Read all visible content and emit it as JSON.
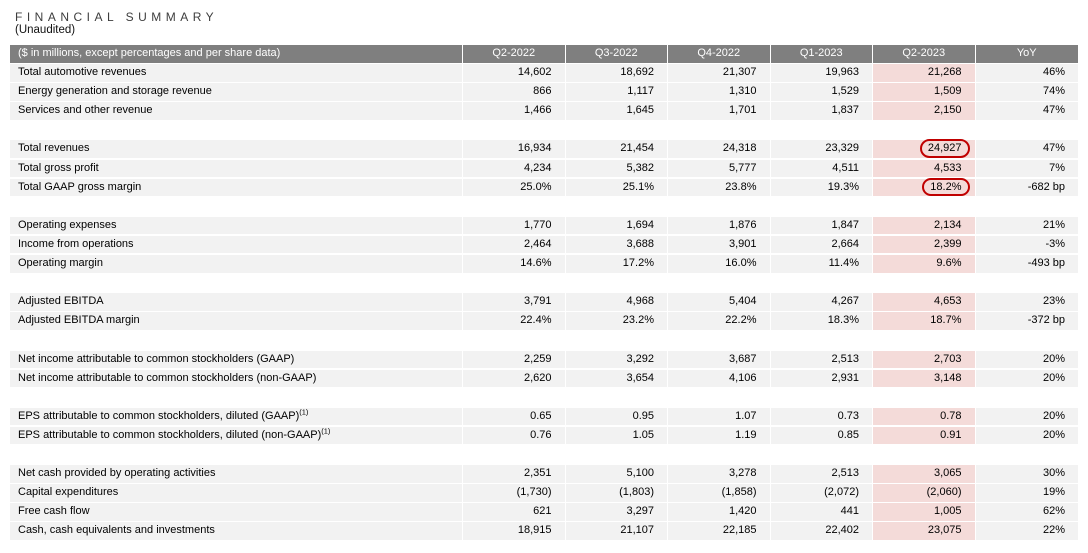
{
  "title": "FINANCIAL SUMMARY",
  "subtitle": "(Unaudited)",
  "colors": {
    "header_bg": "#7f7f7f",
    "header_text": "#ffffff",
    "row_bg": "#f2f2f2",
    "highlight_column_bg": "#f4dbd9",
    "annotation_red": "#c00000"
  },
  "table": {
    "label_header": "($ in millions, except percentages and per share data)",
    "columns": [
      "Q2-2022",
      "Q3-2022",
      "Q4-2022",
      "Q1-2023",
      "Q2-2023",
      "YoY"
    ],
    "highlight_column_index": 4,
    "groups": [
      {
        "rows": [
          {
            "label": "Total automotive revenues",
            "values": [
              "14,602",
              "18,692",
              "21,307",
              "19,963",
              "21,268",
              "46%"
            ]
          },
          {
            "label": "Energy generation and storage revenue",
            "values": [
              "866",
              "1,117",
              "1,310",
              "1,529",
              "1,509",
              "74%"
            ]
          },
          {
            "label": "Services and other revenue",
            "values": [
              "1,466",
              "1,645",
              "1,701",
              "1,837",
              "2,150",
              "47%"
            ]
          }
        ]
      },
      {
        "rows": [
          {
            "label": "Total revenues",
            "values": [
              "16,934",
              "21,454",
              "24,318",
              "23,329",
              "24,927",
              "47%"
            ],
            "circled_value_index": 4
          },
          {
            "label": "Total gross profit",
            "values": [
              "4,234",
              "5,382",
              "5,777",
              "4,511",
              "4,533",
              "7%"
            ]
          },
          {
            "label": "Total GAAP gross margin",
            "values": [
              "25.0%",
              "25.1%",
              "23.8%",
              "19.3%",
              "18.2%",
              "-682 bp"
            ],
            "circled_value_index": 4
          }
        ]
      },
      {
        "rows": [
          {
            "label": "Operating expenses",
            "values": [
              "1,770",
              "1,694",
              "1,876",
              "1,847",
              "2,134",
              "21%"
            ]
          },
          {
            "label": "Income from operations",
            "values": [
              "2,464",
              "3,688",
              "3,901",
              "2,664",
              "2,399",
              "-3%"
            ]
          },
          {
            "label": "Operating margin",
            "values": [
              "14.6%",
              "17.2%",
              "16.0%",
              "11.4%",
              "9.6%",
              "-493 bp"
            ]
          }
        ]
      },
      {
        "rows": [
          {
            "label": "Adjusted EBITDA",
            "values": [
              "3,791",
              "4,968",
              "5,404",
              "4,267",
              "4,653",
              "23%"
            ]
          },
          {
            "label": "Adjusted EBITDA margin",
            "values": [
              "22.4%",
              "23.2%",
              "22.2%",
              "18.3%",
              "18.7%",
              "-372 bp"
            ]
          }
        ]
      },
      {
        "rows": [
          {
            "label": "Net income attributable to common stockholders (GAAP)",
            "values": [
              "2,259",
              "3,292",
              "3,687",
              "2,513",
              "2,703",
              "20%"
            ]
          },
          {
            "label": "Net income attributable to common stockholders (non-GAAP)",
            "values": [
              "2,620",
              "3,654",
              "4,106",
              "2,931",
              "3,148",
              "20%"
            ]
          }
        ]
      },
      {
        "rows": [
          {
            "label": "EPS attributable to common stockholders, diluted (GAAP)",
            "label_sup": "(1)",
            "values": [
              "0.65",
              "0.95",
              "1.07",
              "0.73",
              "0.78",
              "20%"
            ]
          },
          {
            "label": "EPS attributable to common stockholders, diluted (non-GAAP)",
            "label_sup": "(1)",
            "values": [
              "0.76",
              "1.05",
              "1.19",
              "0.85",
              "0.91",
              "20%"
            ]
          }
        ]
      },
      {
        "rows": [
          {
            "label": "Net cash provided by operating activities",
            "values": [
              "2,351",
              "5,100",
              "3,278",
              "2,513",
              "3,065",
              "30%"
            ]
          },
          {
            "label": "Capital expenditures",
            "values": [
              "(1,730)",
              "(1,803)",
              "(1,858)",
              "(2,072)",
              "(2,060)",
              "19%"
            ]
          },
          {
            "label": "Free cash flow",
            "values": [
              "621",
              "3,297",
              "1,420",
              "441",
              "1,005",
              "62%"
            ]
          },
          {
            "label": "Cash, cash equivalents and investments",
            "values": [
              "18,915",
              "21,107",
              "22,185",
              "22,402",
              "23,075",
              "22%"
            ]
          }
        ]
      }
    ]
  }
}
